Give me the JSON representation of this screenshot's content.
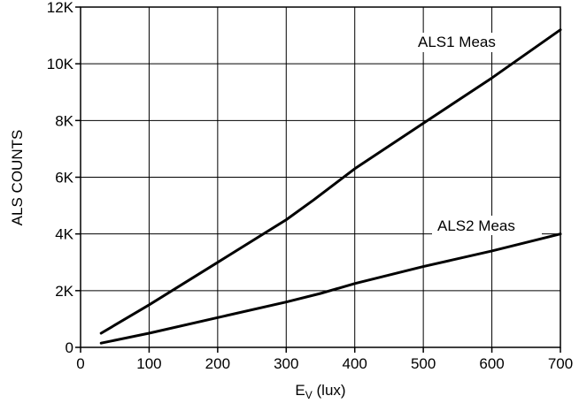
{
  "chart_data": {
    "type": "line",
    "xlabel_main": "E",
    "xlabel_sub": "V",
    "xlabel_unit": " (lux)",
    "ylabel": "ALS COUNTS",
    "xlim": [
      0,
      700
    ],
    "ylim": [
      0,
      12000
    ],
    "x_ticks": [
      0,
      100,
      200,
      300,
      400,
      500,
      600,
      700
    ],
    "x_tick_labels": [
      "0",
      "100",
      "200",
      "300",
      "400",
      "500",
      "600",
      "700"
    ],
    "y_ticks": [
      0,
      2000,
      4000,
      6000,
      8000,
      10000,
      12000
    ],
    "y_tick_labels": [
      "0",
      "2K",
      "4K",
      "6K",
      "8K",
      "10K",
      "12K"
    ],
    "grid": true,
    "series": [
      {
        "name": "ALS1 Meas",
        "x": [
          30,
          100,
          200,
          300,
          340,
          400,
          500,
          600,
          700
        ],
        "y": [
          500,
          1500,
          3000,
          4500,
          5200,
          6300,
          7900,
          9500,
          11200
        ]
      },
      {
        "name": "ALS2 Meas",
        "x": [
          30,
          100,
          200,
          300,
          350,
          400,
          500,
          600,
          700
        ],
        "y": [
          150,
          500,
          1050,
          1600,
          1900,
          2250,
          2850,
          3400,
          4000
        ]
      }
    ]
  }
}
